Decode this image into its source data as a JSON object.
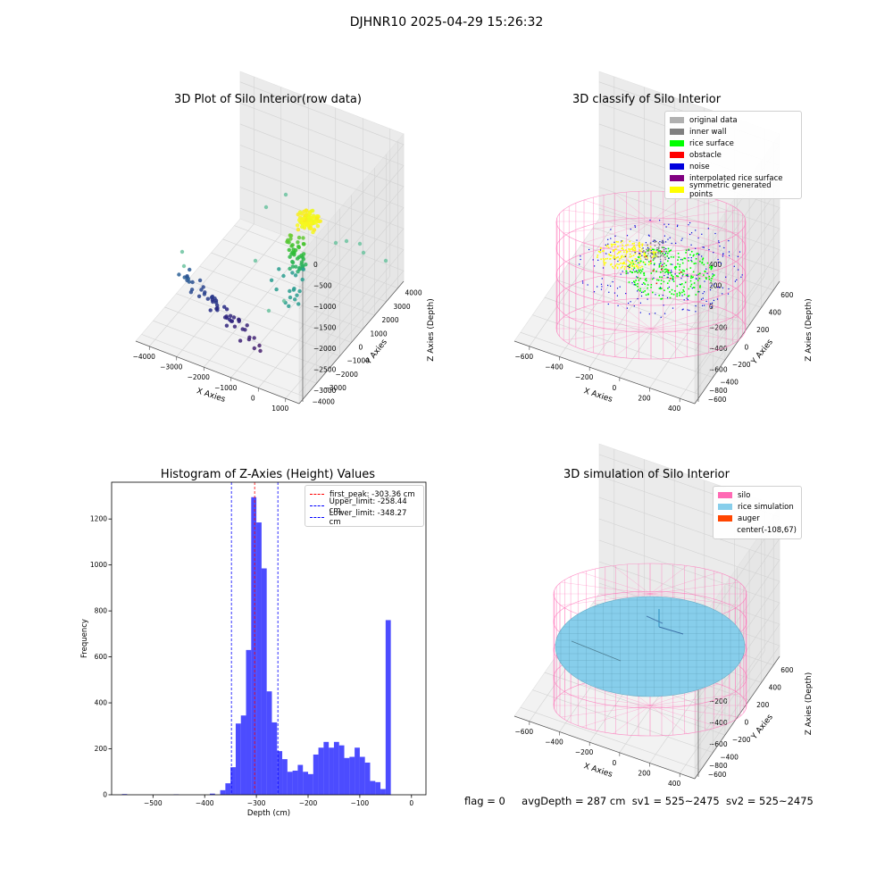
{
  "suptitle": "DJHNR10 2025-04-29 15:26:32",
  "footer": {
    "flag": "flag = 0",
    "avg": "avgDepth = 287 cm",
    "sv1": "sv1 = 525~2475",
    "sv2": "sv2 = 525~2475"
  },
  "panels": {
    "raw": {
      "title": "3D Plot of Silo Interior(row data)",
      "xlabel": "X Axies",
      "ylabel": "Y Axies",
      "zlabel": "Z Axies (Depth)",
      "xticks": [
        "−4000",
        "−3000",
        "−2000",
        "−1000",
        "0",
        "1000"
      ],
      "yticks": [
        "−4000",
        "−3000",
        "−2000",
        "−1000",
        "0",
        "1000",
        "2000",
        "3000",
        "4000"
      ],
      "zticks": [
        "0",
        "−500",
        "−1000",
        "−1500",
        "−2000",
        "−2500",
        "−3000"
      ]
    },
    "classify": {
      "title": "3D classify of Silo Interior",
      "xlabel": "X Axies",
      "ylabel": "Y Axies",
      "zlabel": "Z Axies (Depth)",
      "xticks": [
        "−600",
        "−400",
        "−200",
        "0",
        "200",
        "400"
      ],
      "yticks": [
        "−600",
        "−400",
        "−200",
        "0",
        "200",
        "400",
        "600"
      ],
      "zticks": [
        "400",
        "200",
        "0",
        "−200",
        "−400",
        "−600",
        "−800"
      ],
      "legend": [
        {
          "label": "original data",
          "color": "#b0b0b0"
        },
        {
          "label": "inner wall",
          "color": "#808080"
        },
        {
          "label": "rice surface",
          "color": "#00ff00"
        },
        {
          "label": "obstacle",
          "color": "#ff0000"
        },
        {
          "label": "noise",
          "color": "#0000dd"
        },
        {
          "label": "interpolated rice surface",
          "color": "#800080"
        },
        {
          "label": "symmetric generated points",
          "color": "#ffff00"
        }
      ]
    },
    "simulation": {
      "title": "3D simulation of Silo Interior",
      "xlabel": "X Axies",
      "ylabel": "Y Axies",
      "zlabel": "Z Axies (Depth)",
      "xticks": [
        "−600",
        "−400",
        "−200",
        "0",
        "200",
        "400"
      ],
      "yticks": [
        "−600",
        "−400",
        "−200",
        "0",
        "200",
        "400",
        "600"
      ],
      "zticks": [
        "400",
        "200",
        "0",
        "−200",
        "−400",
        "−600",
        "−800"
      ],
      "legend": [
        {
          "label": "silo",
          "color": "#ff69b4"
        },
        {
          "label": "rice simulation",
          "color": "#87ceeb"
        },
        {
          "label": "auger",
          "color": "#ff4500"
        },
        {
          "label": "center(-108,67)",
          "color": ""
        }
      ]
    }
  },
  "chart_data": [
    {
      "type": "bar",
      "title": "Histogram of Z-Axies (Height) Values",
      "xlabel": "Depth (cm)",
      "ylabel": "Frequency",
      "xlim": [
        -580,
        28
      ],
      "ylim": [
        0,
        1360
      ],
      "xticks": [
        -500,
        -400,
        -300,
        -200,
        -100,
        0
      ],
      "yticks": [
        0,
        200,
        400,
        600,
        800,
        1000,
        1200
      ],
      "bar_color": "#0000ff",
      "bins": [
        {
          "x0": -560,
          "x1": -550,
          "count": 3
        },
        {
          "x0": -460,
          "x1": -450,
          "count": 2
        },
        {
          "x0": -390,
          "x1": -380,
          "count": 5
        },
        {
          "x0": -370,
          "x1": -360,
          "count": 20
        },
        {
          "x0": -360,
          "x1": -350,
          "count": 50
        },
        {
          "x0": -350,
          "x1": -340,
          "count": 120
        },
        {
          "x0": -340,
          "x1": -330,
          "count": 310
        },
        {
          "x0": -330,
          "x1": -320,
          "count": 345
        },
        {
          "x0": -320,
          "x1": -310,
          "count": 630
        },
        {
          "x0": -310,
          "x1": -300,
          "count": 1295
        },
        {
          "x0": -300,
          "x1": -290,
          "count": 1185
        },
        {
          "x0": -290,
          "x1": -280,
          "count": 985
        },
        {
          "x0": -280,
          "x1": -270,
          "count": 450
        },
        {
          "x0": -270,
          "x1": -260,
          "count": 315
        },
        {
          "x0": -260,
          "x1": -250,
          "count": 190
        },
        {
          "x0": -250,
          "x1": -240,
          "count": 155
        },
        {
          "x0": -240,
          "x1": -230,
          "count": 100
        },
        {
          "x0": -230,
          "x1": -220,
          "count": 105
        },
        {
          "x0": -220,
          "x1": -210,
          "count": 130
        },
        {
          "x0": -210,
          "x1": -200,
          "count": 100
        },
        {
          "x0": -200,
          "x1": -190,
          "count": 90
        },
        {
          "x0": -190,
          "x1": -180,
          "count": 175
        },
        {
          "x0": -180,
          "x1": -170,
          "count": 205
        },
        {
          "x0": -170,
          "x1": -160,
          "count": 230
        },
        {
          "x0": -160,
          "x1": -150,
          "count": 205
        },
        {
          "x0": -150,
          "x1": -140,
          "count": 230
        },
        {
          "x0": -140,
          "x1": -130,
          "count": 215
        },
        {
          "x0": -130,
          "x1": -120,
          "count": 160
        },
        {
          "x0": -120,
          "x1": -110,
          "count": 165
        },
        {
          "x0": -110,
          "x1": -100,
          "count": 205
        },
        {
          "x0": -100,
          "x1": -90,
          "count": 165
        },
        {
          "x0": -90,
          "x1": -80,
          "count": 140
        },
        {
          "x0": -80,
          "x1": -70,
          "count": 60
        },
        {
          "x0": -70,
          "x1": -60,
          "count": 55
        },
        {
          "x0": -60,
          "x1": -50,
          "count": 25
        },
        {
          "x0": -50,
          "x1": -40,
          "count": 760
        }
      ],
      "lines": [
        {
          "label": "first_peak: -303.36 cm",
          "x": -303.36,
          "color": "#ff0000"
        },
        {
          "label": "Upper_limit: -258.44 cm",
          "x": -258.44,
          "color": "#0000ff"
        },
        {
          "label": "Lower_limit: -348.27 cm",
          "x": -348.27,
          "color": "#0000ff"
        }
      ]
    }
  ]
}
